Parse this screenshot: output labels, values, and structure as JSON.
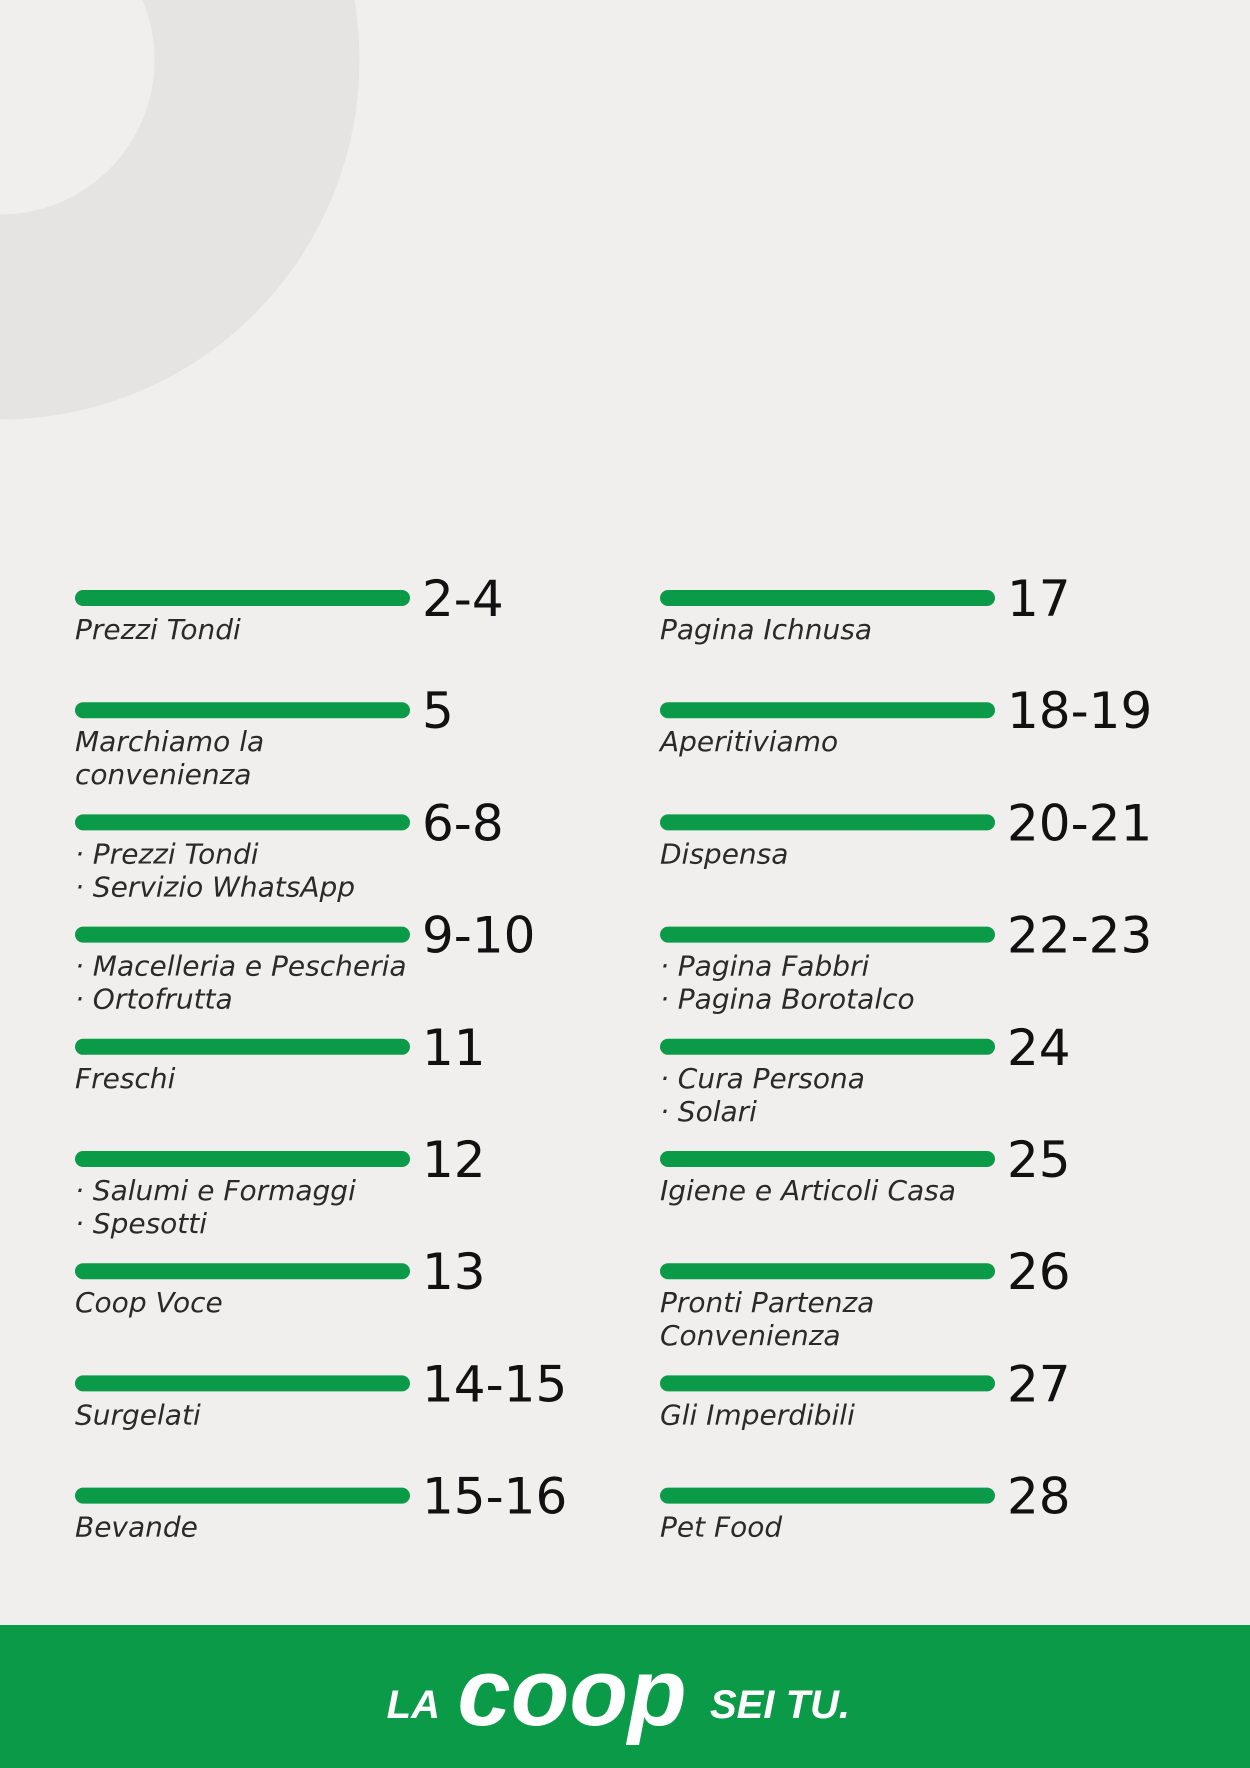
{
  "index": {
    "left": [
      {
        "pages": "2-4",
        "lines": [
          "Prezzi Tondi"
        ]
      },
      {
        "pages": "5",
        "lines": [
          "Marchiamo la",
          "convenienza"
        ]
      },
      {
        "pages": "6-8",
        "lines": [
          "· Prezzi Tondi",
          "· Servizio WhatsApp"
        ]
      },
      {
        "pages": "9-10",
        "lines": [
          "· Macelleria e Pescheria",
          "· Ortofrutta"
        ]
      },
      {
        "pages": "11",
        "lines": [
          "Freschi"
        ]
      },
      {
        "pages": "12",
        "lines": [
          "· Salumi e Formaggi",
          "· Spesotti"
        ]
      },
      {
        "pages": "13",
        "lines": [
          "Coop Voce"
        ]
      },
      {
        "pages": "14-15",
        "lines": [
          "Surgelati"
        ]
      },
      {
        "pages": "15-16",
        "lines": [
          "Bevande"
        ]
      }
    ],
    "right": [
      {
        "pages": "17",
        "lines": [
          "Pagina Ichnusa"
        ]
      },
      {
        "pages": "18-19",
        "lines": [
          "Aperitiviamo"
        ]
      },
      {
        "pages": "20-21",
        "lines": [
          "Dispensa"
        ]
      },
      {
        "pages": "22-23",
        "lines": [
          "· Pagina Fabbri",
          "· Pagina Borotalco"
        ]
      },
      {
        "pages": "24",
        "lines": [
          "· Cura Persona",
          "· Solari"
        ]
      },
      {
        "pages": "25",
        "lines": [
          "Igiene e Articoli Casa"
        ]
      },
      {
        "pages": "26",
        "lines": [
          "Pronti Partenza",
          "Convenienza"
        ]
      },
      {
        "pages": "27",
        "lines": [
          "Gli Imperdibili"
        ]
      },
      {
        "pages": "28",
        "lines": [
          "Pet Food"
        ]
      }
    ]
  },
  "footer": {
    "before": "LA",
    "logo": "coop",
    "after": "SEI TU."
  }
}
